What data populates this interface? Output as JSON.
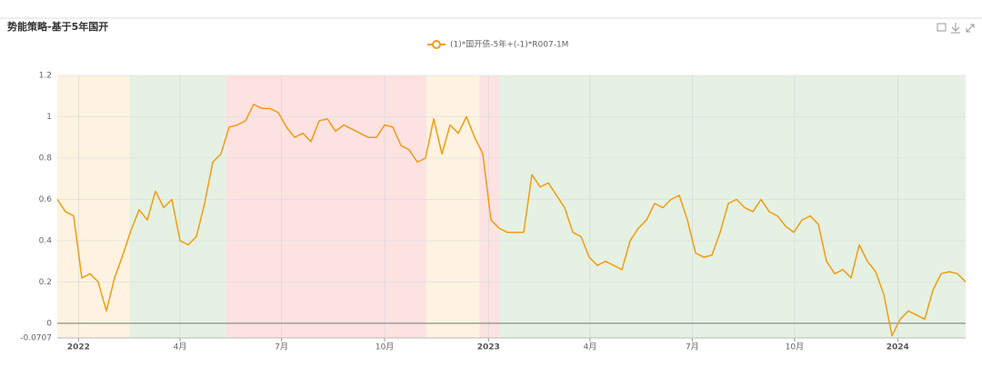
{
  "chart_data": {
    "type": "line",
    "title": "势能策略-基于5年国开",
    "series": [
      {
        "name": "(1)*国开债-5年+(-1)*R007-1M",
        "color": "#f39c12",
        "values": [
          0.6,
          0.54,
          0.52,
          0.22,
          0.24,
          0.2,
          0.06,
          0.22,
          0.33,
          0.45,
          0.55,
          0.5,
          0.64,
          0.56,
          0.6,
          0.4,
          0.38,
          0.42,
          0.58,
          0.78,
          0.82,
          0.95,
          0.96,
          0.98,
          1.06,
          1.04,
          1.04,
          1.02,
          0.95,
          0.9,
          0.92,
          0.88,
          0.98,
          0.99,
          0.93,
          0.96,
          0.94,
          0.92,
          0.9,
          0.9,
          0.96,
          0.95,
          0.86,
          0.84,
          0.78,
          0.8,
          0.99,
          0.82,
          0.96,
          0.92,
          1.0,
          0.9,
          0.82,
          0.5,
          0.46,
          0.44,
          0.44,
          0.44,
          0.72,
          0.66,
          0.68,
          0.62,
          0.56,
          0.44,
          0.42,
          0.32,
          0.28,
          0.3,
          0.28,
          0.26,
          0.4,
          0.46,
          0.5,
          0.58,
          0.56,
          0.6,
          0.62,
          0.5,
          0.34,
          0.32,
          0.33,
          0.44,
          0.58,
          0.6,
          0.56,
          0.54,
          0.6,
          0.54,
          0.52,
          0.47,
          0.44,
          0.5,
          0.52,
          0.48,
          0.3,
          0.24,
          0.26,
          0.22,
          0.38,
          0.3,
          0.25,
          0.14,
          -0.06,
          0.02,
          0.06,
          0.04,
          0.02,
          0.16,
          0.24,
          0.25,
          0.24,
          0.2
        ]
      }
    ],
    "xlim": [
      0,
      111
    ],
    "xticks": [
      {
        "value": 2.6,
        "label": "2022"
      },
      {
        "value": 15,
        "label": "4月"
      },
      {
        "value": 27.4,
        "label": "7月"
      },
      {
        "value": 40,
        "label": "10月"
      },
      {
        "value": 52.7,
        "label": "2023"
      },
      {
        "value": 65.1,
        "label": "4月"
      },
      {
        "value": 77.6,
        "label": "7月"
      },
      {
        "value": 90.1,
        "label": "10月"
      },
      {
        "value": 102.7,
        "label": "2024"
      }
    ],
    "ylim": [
      -0.0707,
      1.2
    ],
    "yticks": [
      -0.0707,
      0,
      0.2,
      0.4,
      0.6,
      0.8,
      1,
      1.2
    ],
    "grid": true,
    "bands": [
      {
        "from": 0,
        "to": 8.8,
        "color": "#fdf3e0"
      },
      {
        "from": 8.8,
        "to": 20.6,
        "color": "#e5f1e2"
      },
      {
        "from": 20.6,
        "to": 45.1,
        "color": "#fde2e2"
      },
      {
        "from": 45.1,
        "to": 51.6,
        "color": "#fdf3e0"
      },
      {
        "from": 51.6,
        "to": 54,
        "color": "#fde2e2"
      },
      {
        "from": 54,
        "to": 111,
        "color": "#e5f1e2"
      }
    ]
  }
}
